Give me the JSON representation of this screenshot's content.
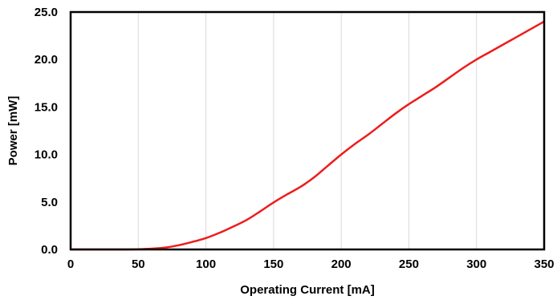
{
  "chart_data": {
    "type": "line",
    "title": "",
    "xlabel": "Operating Current [mA]",
    "ylabel": "Power [mW]",
    "xlim": [
      0,
      350
    ],
    "ylim": [
      0,
      25
    ],
    "x_ticks": [
      "0",
      "50",
      "100",
      "150",
      "200",
      "250",
      "300",
      "350"
    ],
    "y_ticks": [
      "0.0",
      "5.0",
      "10.0",
      "15.0",
      "20.0",
      "25.0"
    ],
    "grid": "vertical",
    "legend": "none",
    "series": [
      {
        "color": "#ee1c1c",
        "x": [
          0,
          20,
          40,
          50,
          60,
          70,
          80,
          90,
          100,
          110,
          120,
          130,
          140,
          150,
          160,
          170,
          180,
          190,
          200,
          210,
          220,
          230,
          240,
          250,
          260,
          270,
          280,
          290,
          300,
          310,
          320,
          330,
          340,
          350
        ],
        "y": [
          0.0,
          0.0,
          0.0,
          0.02,
          0.08,
          0.2,
          0.45,
          0.8,
          1.2,
          1.75,
          2.4,
          3.1,
          4.0,
          4.95,
          5.8,
          6.6,
          7.6,
          8.8,
          10.0,
          11.1,
          12.1,
          13.2,
          14.3,
          15.3,
          16.2,
          17.1,
          18.1,
          19.1,
          20.0,
          20.8,
          21.6,
          22.4,
          23.2,
          24.0
        ]
      }
    ]
  }
}
